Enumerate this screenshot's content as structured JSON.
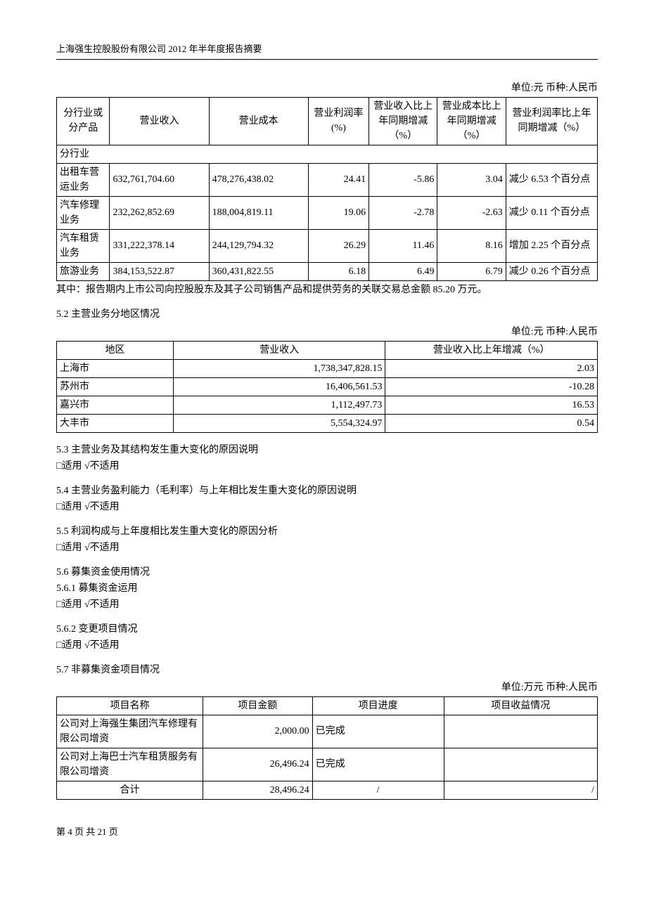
{
  "header": {
    "title": "上海强生控股股份有限公司 2012 年半年度报告摘要"
  },
  "unit_lines": {
    "u1": "单位:元 币种:人民币",
    "u2": "单位:元 币种:人民币",
    "u3": "单位:万元 币种:人民币"
  },
  "table1": {
    "headers": {
      "c0": "分行业或分产品",
      "c1": "营业收入",
      "c2": "营业成本",
      "c3": "营业利润率\n(%)",
      "c4": "营业收入比上年同期增减（%）",
      "c5": "营业成本比上年同期增减（%）",
      "c6": "营业利润率比上年同期增减（%）"
    },
    "section_label": "分行业",
    "rows": [
      {
        "c0": "出租车营运业务",
        "c1": "632,761,704.60",
        "c2": "478,276,438.02",
        "c3": "24.41",
        "c4": "-5.86",
        "c5": "3.04",
        "c6": "减少 6.53 个百分点"
      },
      {
        "c0": "汽车修理业务",
        "c1": "232,262,852.69",
        "c2": "188,004,819.11",
        "c3": "19.06",
        "c4": "-2.78",
        "c5": "-2.63",
        "c6": "减少 0.11 个百分点"
      },
      {
        "c0": "汽车租赁业务",
        "c1": "331,222,378.14",
        "c2": "244,129,794.32",
        "c3": "26.29",
        "c4": "11.46",
        "c5": "8.16",
        "c6": "增加 2.25 个百分点"
      },
      {
        "c0": "旅游业务",
        "c1": "384,153,522.87",
        "c2": "360,431,822.55",
        "c3": "6.18",
        "c4": "6.49",
        "c5": "6.79",
        "c6": "减少 0.26 个百分点"
      }
    ]
  },
  "note_after_t1": "其中：报告期内上市公司向控股股东及其子公司销售产品和提供劳务的关联交易总金额 85.20 万元。",
  "sections": {
    "s52_title": "5.2 主营业务分地区情况",
    "s53_title": "5.3 主营业务及其结构发生重大变化的原因说明",
    "s53_body": "□适用 √不适用",
    "s54_title": "5.4 主营业务盈利能力（毛利率）与上年相比发生重大变化的原因说明",
    "s54_body": "□适用 √不适用",
    "s55_title": "5.5 利润构成与上年度相比发生重大变化的原因分析",
    "s55_body": "□适用 √不适用",
    "s56_title": "5.6 募集资金使用情况",
    "s561_title": "5.6.1 募集资金运用",
    "s561_body": "□适用 √不适用",
    "s562_title": "5.6.2 变更项目情况",
    "s562_body": "□适用 √不适用",
    "s57_title": "5.7 非募集资金项目情况"
  },
  "table2": {
    "headers": {
      "c0": "地区",
      "c1": "营业收入",
      "c2": "营业收入比上年增减（%）"
    },
    "rows": [
      {
        "c0": "上海市",
        "c1": "1,738,347,828.15",
        "c2": "2.03"
      },
      {
        "c0": "苏州市",
        "c1": "16,406,561.53",
        "c2": "-10.28"
      },
      {
        "c0": "嘉兴市",
        "c1": "1,112,497.73",
        "c2": "16.53"
      },
      {
        "c0": "大丰市",
        "c1": "5,554,324.97",
        "c2": "0.54"
      }
    ]
  },
  "table3": {
    "headers": {
      "c0": "项目名称",
      "c1": "项目金额",
      "c2": "项目进度",
      "c3": "项目收益情况"
    },
    "rows": [
      {
        "c0": "公司对上海强生集团汽车修理有限公司增资",
        "c1": "2,000.00",
        "c2": "已完成",
        "c3": ""
      },
      {
        "c0": "公司对上海巴士汽车租赁服务有限公司增资",
        "c1": "26,496.24",
        "c2": "已完成",
        "c3": ""
      }
    ],
    "total": {
      "c0": "合计",
      "c1": "28,496.24",
      "c2": "/",
      "c3": "/"
    }
  },
  "footer": {
    "page": "第 4 页 共 21 页"
  }
}
